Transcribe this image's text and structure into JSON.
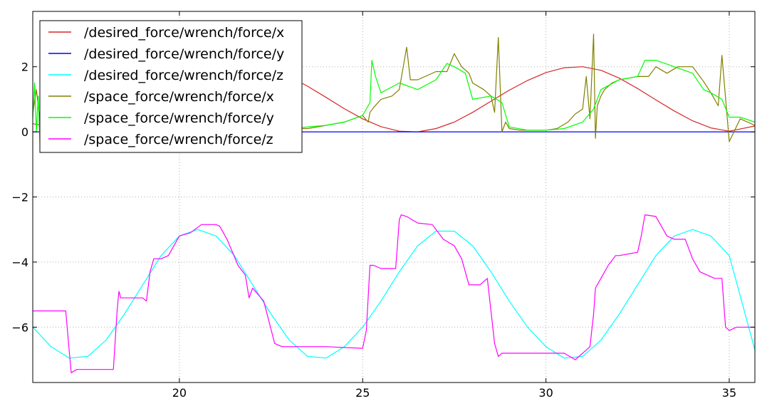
{
  "chart_data": {
    "type": "line",
    "title": "",
    "xlabel": "",
    "ylabel": "",
    "xlim": [
      16.0,
      35.7
    ],
    "ylim": [
      -7.7,
      3.7
    ],
    "xticks": [
      20,
      25,
      30,
      35
    ],
    "yticks": [
      -6,
      -4,
      -2,
      0,
      2
    ],
    "xtick_labels": [
      "20",
      "25",
      "30",
      "35"
    ],
    "ytick_labels": [
      "−6",
      "−4",
      "−2",
      "0",
      "2"
    ],
    "grid": true,
    "legend_position": "top-left",
    "series": [
      {
        "name": "/desired_force/wrench/force/x",
        "color": "#d62728",
        "x": [
          16.0,
          17.2,
          17.5,
          18.0,
          18.5,
          19.0,
          19.5,
          20.0,
          20.5,
          21.0,
          21.5,
          22.0,
          22.5,
          23.0,
          23.5,
          24.0,
          24.5,
          25.0,
          25.5,
          26.0,
          26.5,
          27.0,
          27.5,
          28.0,
          28.5,
          29.0,
          29.5,
          30.0,
          30.5,
          31.0,
          31.5,
          32.0,
          32.5,
          33.0,
          33.5,
          34.0,
          34.5,
          35.0,
          35.7
        ],
        "values": [
          0.25,
          0.0,
          0.02,
          0.13,
          0.31,
          0.58,
          0.87,
          1.21,
          1.52,
          1.78,
          1.95,
          2.0,
          1.91,
          1.7,
          1.4,
          1.06,
          0.71,
          0.4,
          0.16,
          0.02,
          0.0,
          0.1,
          0.3,
          0.6,
          0.94,
          1.28,
          1.58,
          1.82,
          1.97,
          2.0,
          1.89,
          1.65,
          1.33,
          0.98,
          0.64,
          0.34,
          0.12,
          0.02,
          0.18
        ]
      },
      {
        "name": "/desired_force/wrench/force/y",
        "color": "#0000ff",
        "x": [
          16.0,
          35.7
        ],
        "values": [
          0.0,
          0.0
        ]
      },
      {
        "name": "/desired_force/wrench/force/z",
        "color": "#00ffff",
        "x": [
          16.0,
          16.5,
          17.0,
          17.5,
          18.0,
          18.5,
          19.0,
          19.5,
          20.0,
          20.5,
          21.0,
          21.5,
          22.0,
          22.5,
          23.0,
          23.5,
          24.0,
          24.5,
          25.0,
          25.5,
          26.0,
          26.5,
          27.0,
          27.5,
          28.0,
          28.5,
          29.0,
          29.5,
          30.0,
          30.5,
          31.0,
          31.5,
          32.0,
          32.5,
          33.0,
          33.5,
          34.0,
          34.5,
          35.0,
          35.7
        ],
        "values": [
          -6.0,
          -6.6,
          -6.95,
          -6.9,
          -6.4,
          -5.6,
          -4.7,
          -3.8,
          -3.2,
          -3.0,
          -3.2,
          -3.8,
          -4.7,
          -5.6,
          -6.4,
          -6.9,
          -6.95,
          -6.6,
          -6.0,
          -5.2,
          -4.3,
          -3.5,
          -3.05,
          -3.05,
          -3.5,
          -4.3,
          -5.2,
          -6.0,
          -6.6,
          -6.95,
          -6.9,
          -6.4,
          -5.6,
          -4.7,
          -3.8,
          -3.2,
          -3.0,
          -3.2,
          -3.8,
          -6.7
        ]
      },
      {
        "name": "/space_force/wrench/force/x",
        "color": "#808000",
        "x": [
          16.0,
          16.1,
          16.2,
          16.3,
          17.0,
          17.5,
          18.0,
          18.5,
          19.0,
          20.0,
          21.0,
          22.0,
          23.0,
          23.5,
          24.0,
          24.5,
          25.0,
          25.15,
          25.2,
          25.3,
          25.5,
          25.8,
          26.0,
          26.2,
          26.3,
          26.5,
          27.0,
          27.3,
          27.5,
          27.7,
          27.9,
          28.0,
          28.3,
          28.5,
          28.6,
          28.7,
          28.8,
          28.9,
          29.0,
          29.3,
          29.6,
          30.0,
          30.3,
          30.6,
          30.8,
          31.0,
          31.1,
          31.2,
          31.3,
          31.35,
          31.4,
          31.5,
          31.6,
          31.8,
          32.0,
          32.5,
          32.8,
          33.0,
          33.3,
          33.6,
          34.0,
          34.3,
          34.5,
          34.7,
          34.8,
          35.0,
          35.3,
          35.7
        ],
        "values": [
          0.55,
          1.3,
          0.3,
          0.0,
          0.05,
          0.08,
          0.05,
          0.08,
          0.05,
          0.1,
          0.1,
          0.12,
          0.1,
          0.1,
          0.2,
          0.3,
          0.5,
          0.3,
          0.6,
          0.75,
          1.0,
          1.1,
          1.3,
          2.6,
          1.6,
          1.6,
          1.85,
          1.85,
          2.4,
          2.0,
          1.8,
          1.5,
          1.3,
          1.1,
          0.6,
          2.9,
          0.0,
          0.3,
          0.1,
          0.05,
          0.05,
          0.05,
          0.1,
          0.3,
          0.55,
          0.7,
          1.7,
          0.4,
          3.0,
          -0.2,
          0.8,
          1.1,
          1.3,
          1.5,
          1.6,
          1.7,
          1.7,
          2.0,
          1.8,
          2.0,
          2.0,
          1.55,
          1.2,
          0.8,
          2.35,
          -0.3,
          0.4,
          0.2
        ]
      },
      {
        "name": "/space_force/wrench/force/y",
        "color": "#00ff00",
        "x": [
          16.0,
          16.05,
          16.1,
          16.15,
          16.2,
          16.3,
          17.0,
          18.0,
          19.0,
          20.0,
          21.0,
          22.0,
          23.0,
          23.5,
          24.0,
          24.5,
          25.0,
          25.2,
          25.25,
          25.35,
          25.5,
          26.0,
          26.5,
          27.0,
          27.3,
          27.5,
          27.8,
          28.0,
          28.5,
          28.8,
          29.0,
          29.5,
          30.0,
          30.5,
          31.0,
          31.3,
          31.5,
          32.0,
          32.5,
          32.7,
          33.0,
          33.5,
          34.0,
          34.3,
          34.5,
          34.8,
          35.0,
          35.3,
          35.7
        ],
        "values": [
          0.4,
          1.5,
          0.0,
          1.1,
          -0.5,
          0.3,
          0.05,
          0.05,
          0.05,
          0.1,
          0.1,
          0.1,
          0.1,
          0.15,
          0.2,
          0.3,
          0.5,
          0.9,
          2.2,
          1.7,
          1.2,
          1.5,
          1.3,
          1.6,
          2.1,
          2.0,
          1.8,
          1.0,
          1.1,
          0.9,
          0.15,
          0.05,
          0.05,
          0.1,
          0.3,
          0.7,
          1.3,
          1.6,
          1.7,
          2.2,
          2.2,
          2.0,
          1.8,
          1.3,
          1.2,
          1.0,
          0.45,
          0.45,
          0.3
        ]
      },
      {
        "name": "/space_force/wrench/force/z",
        "color": "#ff00ff",
        "x": [
          16.0,
          16.5,
          16.9,
          17.0,
          17.05,
          17.2,
          17.5,
          18.0,
          18.2,
          18.3,
          18.35,
          18.4,
          18.6,
          19.0,
          19.1,
          19.2,
          19.3,
          19.5,
          19.7,
          20.0,
          20.3,
          20.6,
          21.0,
          21.1,
          21.3,
          21.6,
          21.8,
          21.9,
          22.0,
          22.3,
          22.6,
          22.8,
          23.0,
          24.0,
          25.0,
          25.1,
          25.2,
          25.3,
          25.5,
          25.9,
          26.0,
          26.05,
          26.2,
          26.5,
          26.9,
          27.2,
          27.5,
          27.7,
          27.9,
          28.2,
          28.4,
          28.6,
          28.7,
          28.8,
          29.0,
          29.5,
          30.0,
          30.5,
          30.8,
          31.0,
          31.2,
          31.3,
          31.35,
          31.5,
          31.7,
          31.9,
          32.0,
          32.5,
          32.6,
          32.7,
          33.0,
          33.3,
          33.5,
          33.8,
          34.0,
          34.2,
          34.4,
          34.6,
          34.8,
          34.9,
          35.0,
          35.2,
          35.7
        ],
        "values": [
          -5.5,
          -5.5,
          -5.5,
          -6.8,
          -7.4,
          -7.3,
          -7.3,
          -7.3,
          -7.3,
          -5.5,
          -4.9,
          -5.1,
          -5.1,
          -5.1,
          -5.2,
          -4.3,
          -3.9,
          -3.9,
          -3.8,
          -3.2,
          -3.1,
          -2.85,
          -2.85,
          -2.9,
          -3.3,
          -4.1,
          -4.4,
          -5.1,
          -4.8,
          -5.2,
          -6.5,
          -6.6,
          -6.6,
          -6.6,
          -6.65,
          -6.1,
          -4.1,
          -4.1,
          -4.2,
          -4.2,
          -2.7,
          -2.55,
          -2.6,
          -2.8,
          -2.85,
          -3.3,
          -3.5,
          -3.9,
          -4.7,
          -4.7,
          -4.5,
          -6.5,
          -6.9,
          -6.8,
          -6.8,
          -6.8,
          -6.8,
          -6.8,
          -7.0,
          -6.8,
          -6.6,
          -5.6,
          -4.8,
          -4.5,
          -4.1,
          -3.8,
          -3.8,
          -3.7,
          -3.2,
          -2.55,
          -2.6,
          -3.2,
          -3.3,
          -3.3,
          -3.9,
          -4.3,
          -4.4,
          -4.5,
          -4.5,
          -6.0,
          -6.1,
          -6.0,
          -6.0
        ]
      }
    ]
  }
}
